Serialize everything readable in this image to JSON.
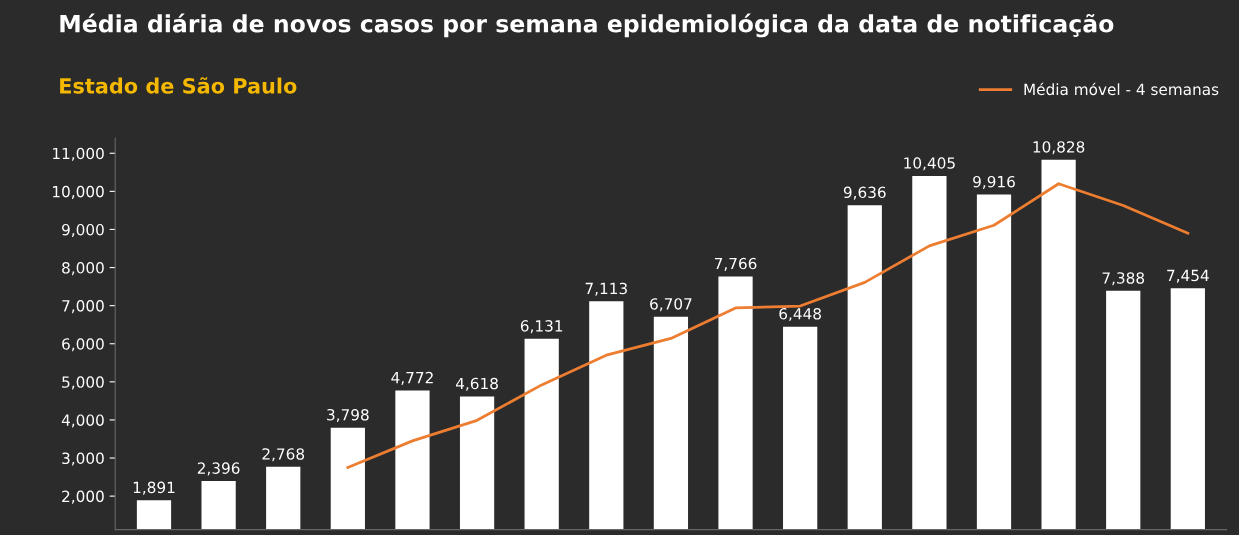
{
  "chart_data": {
    "type": "bar",
    "title": "Média diária de novos casos por semana epidemiológica da data de notificação",
    "subtitle": "Estado de São Paulo",
    "categories": [
      null,
      null,
      null,
      null,
      null,
      null,
      null,
      null,
      null,
      null,
      null,
      null,
      null,
      null,
      null,
      null,
      null
    ],
    "series": [
      {
        "color": "#ffffff",
        "values": [
          1891,
          2396,
          2768,
          3798,
          4772,
          4618,
          6131,
          7113,
          6707,
          7766,
          6448,
          9636,
          10405,
          9916,
          10828,
          7388,
          7454
        ],
        "value_labels": [
          "1,891",
          "2,396",
          "2,768",
          "3,798",
          "4,772",
          "4,618",
          "6,131",
          "7,113",
          "6,707",
          "7,766",
          "6,448",
          "9,636",
          "10,405",
          "9,916",
          "10,828",
          "7,388",
          "7,454"
        ]
      },
      {
        "type": "line",
        "name": "Média móvel - 4 semanas",
        "color": "#ed7d31",
        "values": [
          null,
          null,
          null,
          2750,
          3450,
          3990,
          4920,
          5700,
          6140,
          6940,
          6990,
          7610,
          8570,
          9110,
          10200,
          9630,
          8900
        ]
      }
    ],
    "ylim": [
      1120,
      11400
    ],
    "yticks": [
      {
        "value": 2000,
        "label": "2,000"
      },
      {
        "value": 3000,
        "label": "3,000"
      },
      {
        "value": 4000,
        "label": "4,000"
      },
      {
        "value": 5000,
        "label": "5,000"
      },
      {
        "value": 6000,
        "label": "6,000"
      },
      {
        "value": 7000,
        "label": "7,000"
      },
      {
        "value": 8000,
        "label": "8,000"
      },
      {
        "value": 9000,
        "label": "9,000"
      },
      {
        "value": 10000,
        "label": "10,000"
      },
      {
        "value": 11000,
        "label": "11,000"
      }
    ],
    "grid": false,
    "legend": "top right",
    "tick_labels": "y"
  }
}
